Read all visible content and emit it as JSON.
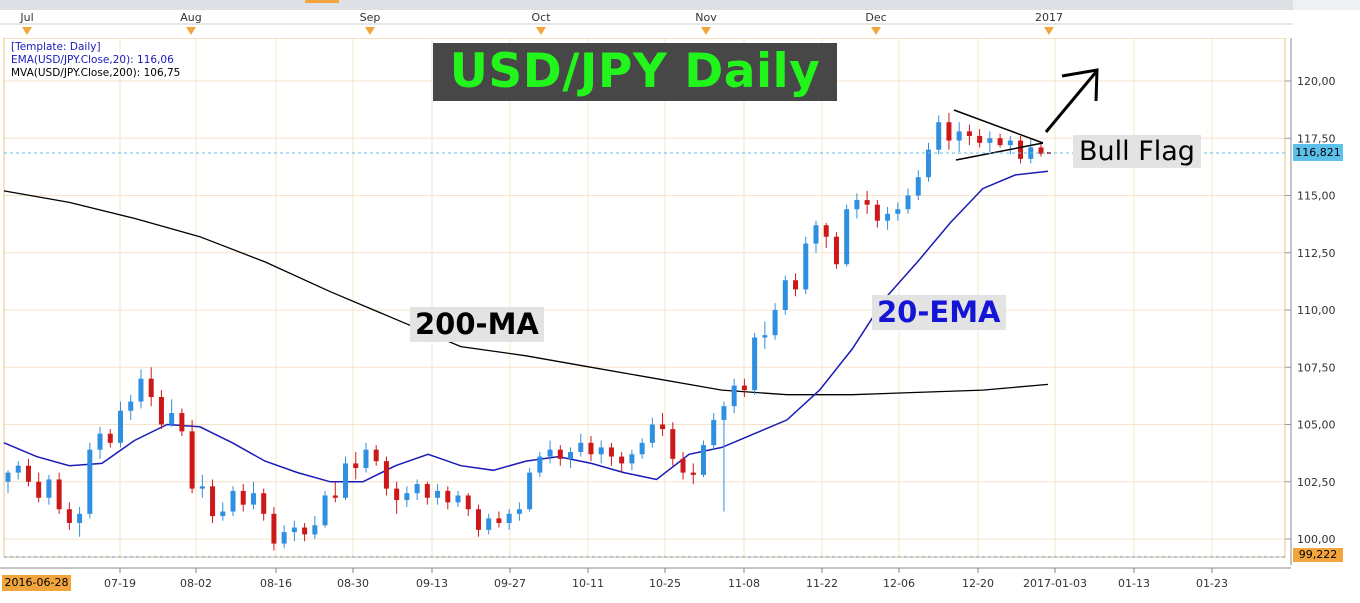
{
  "chart_data": {
    "type": "candlestick",
    "title": "USD/JPY Daily",
    "legend": {
      "template": "[Template: Daily]",
      "ema": "EMA(USD/JPY.Close,20): 116,06",
      "mva": "MVA(USD/JPY.Close,200): 106,75"
    },
    "colors": {
      "up": "#2f8fe0",
      "down": "#cc1818",
      "ema": "#1a1ab8",
      "ma": "#000000",
      "grid": "#f5e4c8",
      "title_bg": "#474747",
      "title_text": "#22f51c"
    },
    "y_axis": {
      "min": 99.222,
      "max": 122.2,
      "ticks": [
        "100,00",
        "102,50",
        "105,00",
        "107,50",
        "110,00",
        "112,50",
        "115,00",
        "117,50",
        "120,00"
      ]
    },
    "x_axis_dates": [
      "07-19",
      "08-02",
      "08-16",
      "08-30",
      "09-13",
      "09-27",
      "10-11",
      "10-25",
      "11-08",
      "11-22",
      "12-06",
      "12-20",
      "2017-01-03",
      "01-13",
      "01-23"
    ],
    "top_months": [
      "Jul",
      "Aug",
      "Sep",
      "Oct",
      "Nov",
      "Dec",
      "2017"
    ],
    "start_date": "2016-06-28",
    "last_price": "116,821",
    "min_price": "99,222",
    "candles": [
      [
        102.5,
        103.0,
        102.0,
        102.9
      ],
      [
        102.9,
        103.4,
        102.6,
        103.2
      ],
      [
        103.2,
        103.5,
        102.3,
        102.5
      ],
      [
        102.5,
        102.9,
        101.6,
        101.8
      ],
      [
        101.8,
        102.8,
        101.5,
        102.6
      ],
      [
        102.6,
        102.9,
        101.1,
        101.3
      ],
      [
        101.3,
        101.6,
        100.4,
        100.7
      ],
      [
        100.7,
        101.4,
        100.1,
        101.1
      ],
      [
        101.1,
        104.2,
        100.9,
        103.9
      ],
      [
        103.9,
        104.9,
        103.5,
        104.6
      ],
      [
        104.6,
        104.8,
        104.0,
        104.2
      ],
      [
        104.2,
        106.0,
        104.0,
        105.6
      ],
      [
        105.6,
        106.3,
        105.2,
        106.0
      ],
      [
        106.0,
        107.4,
        105.7,
        107.0
      ],
      [
        107.0,
        107.5,
        105.8,
        106.2
      ],
      [
        106.2,
        106.5,
        104.8,
        105.0
      ],
      [
        105.0,
        106.1,
        104.9,
        105.5
      ],
      [
        105.5,
        105.7,
        104.5,
        104.7
      ],
      [
        104.7,
        105.2,
        102.0,
        102.2
      ],
      [
        102.2,
        102.8,
        101.8,
        102.3
      ],
      [
        102.3,
        102.6,
        100.7,
        101.0
      ],
      [
        101.0,
        101.6,
        100.8,
        101.2
      ],
      [
        101.2,
        102.3,
        101.0,
        102.1
      ],
      [
        102.1,
        102.4,
        101.2,
        101.5
      ],
      [
        101.5,
        102.5,
        101.3,
        102.0
      ],
      [
        102.0,
        102.2,
        100.8,
        101.1
      ],
      [
        101.1,
        101.4,
        99.5,
        99.8
      ],
      [
        99.8,
        100.6,
        99.6,
        100.3
      ],
      [
        100.3,
        100.8,
        99.9,
        100.5
      ],
      [
        100.5,
        100.7,
        99.9,
        100.2
      ],
      [
        100.2,
        101.0,
        100.0,
        100.6
      ],
      [
        100.6,
        102.1,
        100.5,
        101.9
      ],
      [
        101.9,
        102.5,
        101.6,
        101.8
      ],
      [
        101.8,
        103.6,
        101.7,
        103.3
      ],
      [
        103.3,
        103.8,
        102.6,
        103.1
      ],
      [
        103.1,
        104.2,
        102.9,
        103.9
      ],
      [
        103.9,
        104.1,
        103.2,
        103.4
      ],
      [
        103.4,
        103.6,
        101.9,
        102.2
      ],
      [
        102.2,
        102.5,
        101.1,
        101.7
      ],
      [
        101.7,
        102.3,
        101.4,
        102.0
      ],
      [
        102.0,
        102.6,
        101.7,
        102.4
      ],
      [
        102.4,
        102.5,
        101.5,
        101.8
      ],
      [
        101.8,
        102.4,
        101.5,
        102.1
      ],
      [
        102.1,
        102.3,
        101.3,
        101.6
      ],
      [
        101.6,
        102.1,
        101.4,
        101.9
      ],
      [
        101.9,
        102.0,
        101.0,
        101.3
      ],
      [
        101.3,
        101.5,
        100.1,
        100.4
      ],
      [
        100.4,
        101.1,
        100.2,
        100.9
      ],
      [
        100.9,
        101.2,
        100.5,
        100.7
      ],
      [
        100.7,
        101.3,
        100.4,
        101.1
      ],
      [
        101.1,
        101.6,
        100.8,
        101.3
      ],
      [
        101.3,
        103.1,
        101.2,
        102.9
      ],
      [
        102.9,
        103.8,
        102.7,
        103.6
      ],
      [
        103.6,
        104.3,
        103.3,
        103.9
      ],
      [
        103.9,
        104.1,
        103.2,
        103.5
      ],
      [
        103.5,
        104.0,
        103.1,
        103.8
      ],
      [
        103.8,
        104.6,
        103.6,
        104.2
      ],
      [
        104.2,
        104.5,
        103.4,
        103.7
      ],
      [
        103.7,
        104.3,
        103.3,
        104.0
      ],
      [
        104.0,
        104.2,
        103.2,
        103.6
      ],
      [
        103.6,
        103.8,
        102.9,
        103.3
      ],
      [
        103.3,
        103.9,
        103.0,
        103.7
      ],
      [
        103.7,
        104.4,
        103.5,
        104.2
      ],
      [
        104.2,
        105.3,
        104.0,
        105.0
      ],
      [
        105.0,
        105.5,
        104.5,
        104.8
      ],
      [
        104.8,
        105.1,
        103.2,
        103.5
      ],
      [
        103.5,
        103.8,
        102.6,
        102.9
      ],
      [
        102.9,
        103.3,
        102.4,
        102.8
      ],
      [
        102.8,
        104.3,
        102.7,
        104.1
      ],
      [
        104.1,
        105.5,
        103.9,
        105.2
      ],
      [
        105.2,
        106.0,
        101.2,
        105.8
      ],
      [
        105.8,
        107.0,
        105.5,
        106.7
      ],
      [
        106.7,
        107.0,
        106.2,
        106.5
      ],
      [
        106.5,
        109.0,
        106.3,
        108.8
      ],
      [
        108.8,
        109.5,
        108.3,
        108.9
      ],
      [
        108.9,
        110.3,
        108.7,
        110.0
      ],
      [
        110.0,
        111.5,
        109.8,
        111.3
      ],
      [
        111.3,
        111.6,
        110.6,
        110.9
      ],
      [
        110.9,
        113.2,
        110.7,
        112.9
      ],
      [
        112.9,
        113.9,
        112.5,
        113.7
      ],
      [
        113.7,
        113.8,
        112.7,
        113.2
      ],
      [
        113.2,
        113.4,
        111.8,
        112.0
      ],
      [
        112.0,
        114.6,
        111.9,
        114.4
      ],
      [
        114.4,
        115.1,
        114.0,
        114.8
      ],
      [
        114.8,
        115.2,
        114.2,
        114.6
      ],
      [
        114.6,
        114.8,
        113.6,
        113.9
      ],
      [
        113.9,
        114.5,
        113.5,
        114.2
      ],
      [
        114.2,
        114.7,
        113.9,
        114.4
      ],
      [
        114.4,
        115.3,
        114.2,
        115.0
      ],
      [
        115.0,
        116.1,
        114.8,
        115.8
      ],
      [
        115.8,
        117.3,
        115.6,
        117.0
      ],
      [
        117.0,
        118.5,
        116.8,
        118.2
      ],
      [
        118.2,
        118.6,
        117.0,
        117.4
      ],
      [
        117.4,
        118.2,
        116.9,
        117.8
      ],
      [
        117.8,
        118.1,
        117.2,
        117.6
      ],
      [
        117.6,
        117.9,
        117.1,
        117.3
      ],
      [
        117.3,
        117.8,
        116.9,
        117.5
      ],
      [
        117.5,
        117.7,
        117.1,
        117.2
      ],
      [
        117.2,
        117.6,
        116.8,
        117.4
      ],
      [
        117.4,
        117.6,
        116.4,
        116.6
      ],
      [
        116.6,
        117.5,
        116.4,
        117.1
      ],
      [
        117.1,
        117.3,
        116.7,
        116.82
      ]
    ],
    "ema20": [
      104.2,
      103.6,
      103.2,
      103.3,
      104.3,
      105.0,
      104.9,
      104.2,
      103.4,
      102.9,
      102.5,
      102.5,
      103.2,
      103.7,
      103.2,
      103.0,
      103.4,
      103.6,
      103.3,
      102.9,
      102.6,
      103.7,
      104.0,
      104.6,
      105.2,
      106.5,
      108.3,
      110.5,
      112.1,
      113.8,
      115.3,
      115.9,
      116.06
    ],
    "ma200": [
      115.2,
      114.7,
      114.0,
      113.2,
      112.1,
      110.8,
      109.6,
      108.4,
      108.0,
      107.5,
      107.0,
      106.5,
      106.3,
      106.3,
      106.4,
      106.5,
      106.75
    ],
    "annotations": {
      "ma_label": "200-MA",
      "ema_label": "20-EMA",
      "flag_label": "Bull Flag"
    }
  }
}
